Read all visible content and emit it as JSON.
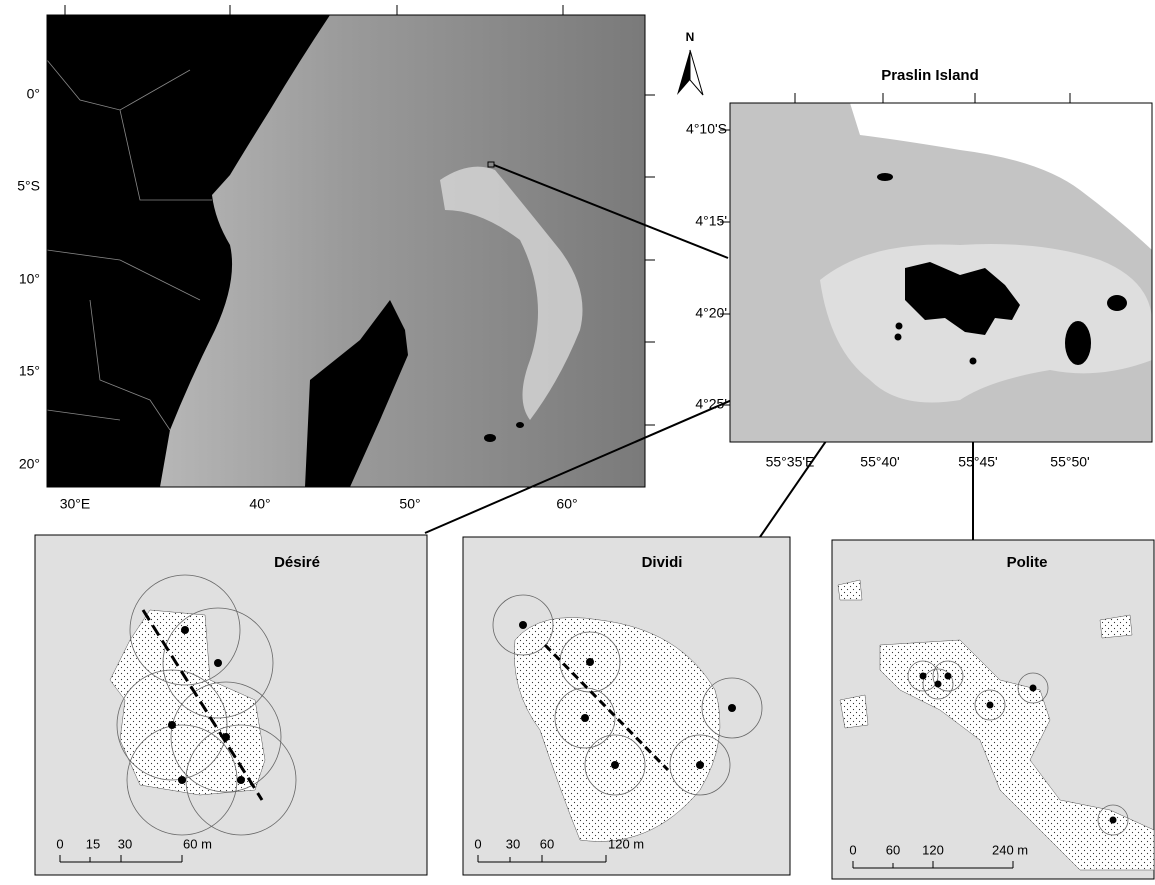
{
  "main_map": {
    "yticks": [
      "0°",
      "5°S",
      "10°",
      "15°",
      "20°"
    ],
    "xticks": [
      "30°E",
      "40°",
      "50°",
      "60°"
    ],
    "north": "N"
  },
  "inset": {
    "title": "Praslin Island",
    "yticks": [
      "4°10'S",
      "4°15'",
      "4°20'",
      "4°25'"
    ],
    "xticks": [
      "55°35'E",
      "55°40'",
      "55°45'",
      "55°50'"
    ]
  },
  "panels": [
    {
      "title": "Désiré",
      "scale": [
        "0",
        "15",
        "30",
        "60 m"
      ]
    },
    {
      "title": "Dividi",
      "scale": [
        "0",
        "30",
        "60",
        "120 m"
      ]
    },
    {
      "title": "Polite",
      "scale": [
        "0",
        "60",
        "120",
        "240 m"
      ]
    }
  ]
}
